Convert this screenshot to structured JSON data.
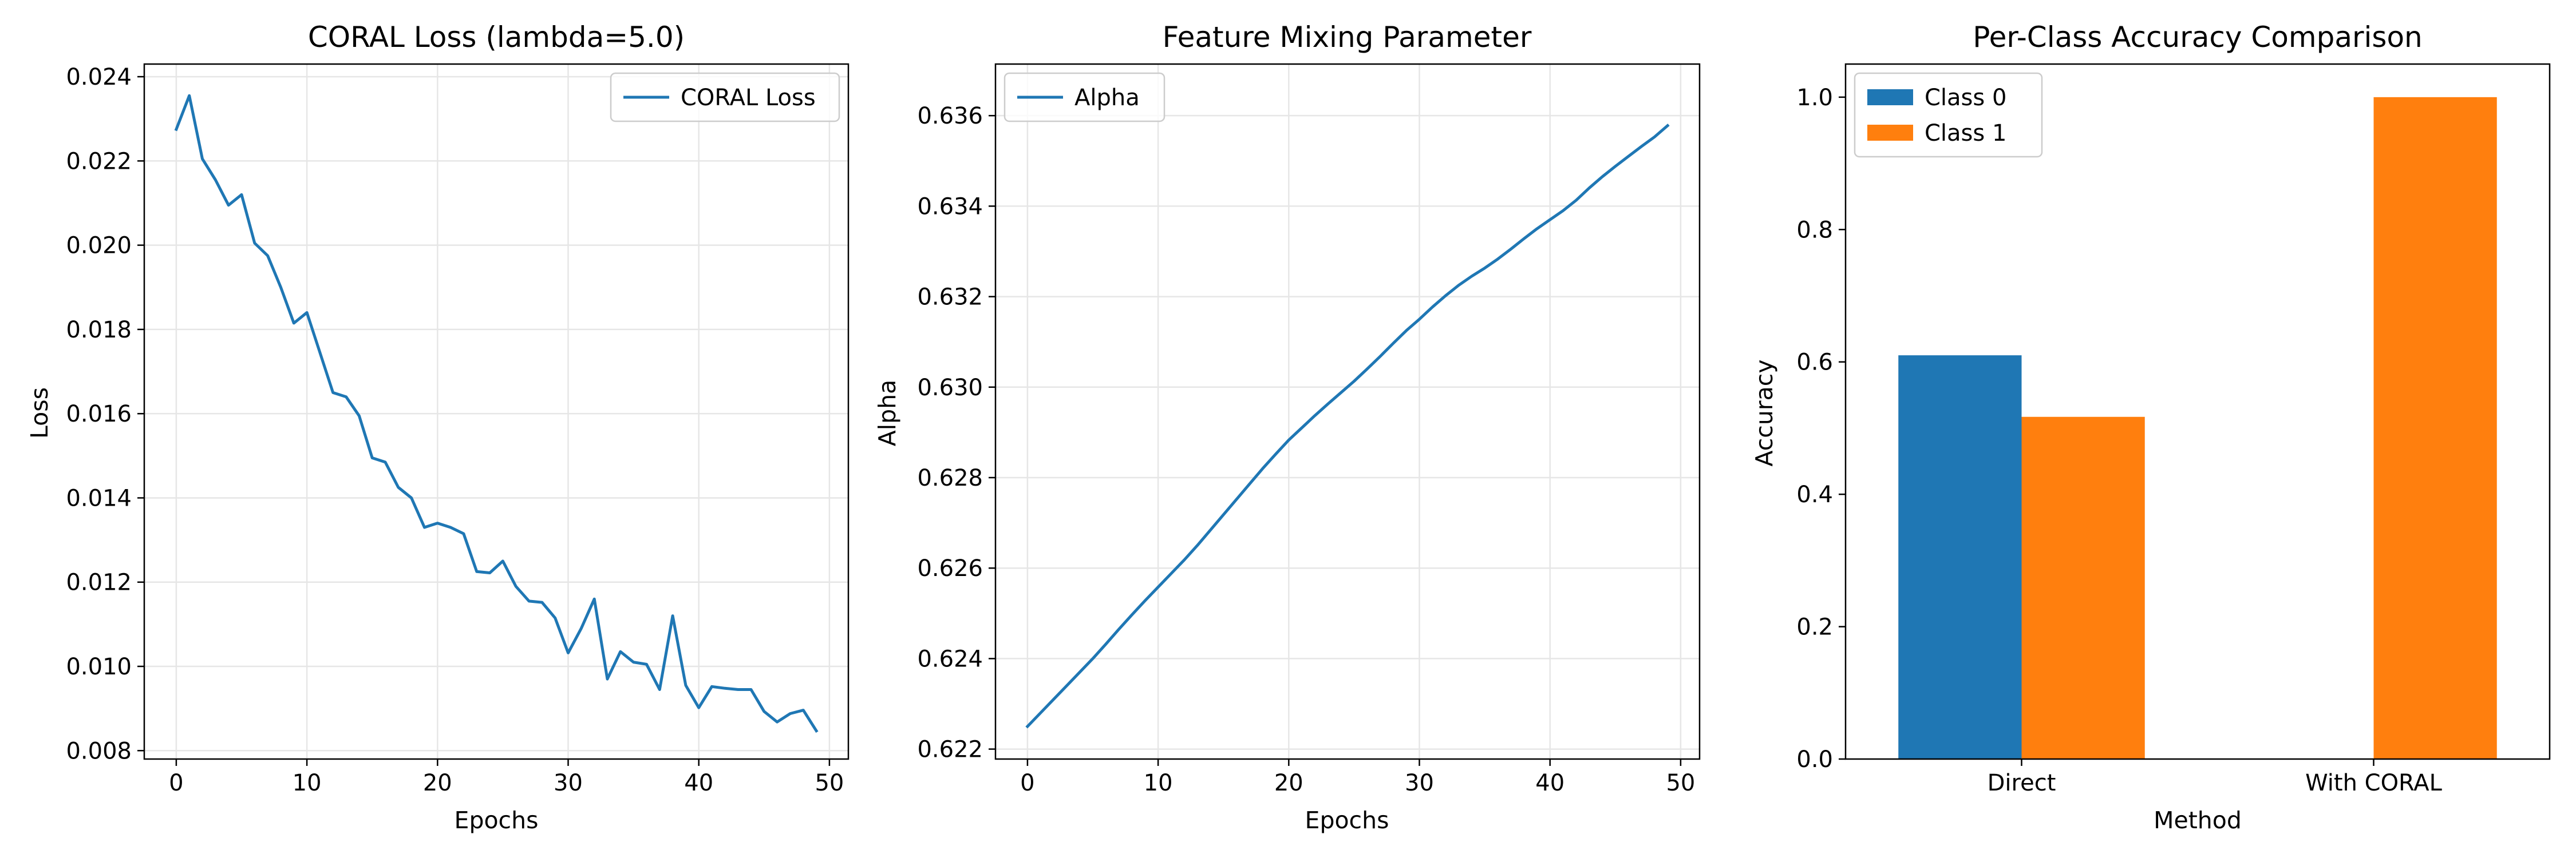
{
  "chart_data": [
    {
      "type": "line",
      "title": "CORAL Loss (lambda=5.0)",
      "xlabel": "Epochs",
      "ylabel": "Loss",
      "xlim": [
        -2.45,
        51.45
      ],
      "ylim": [
        0.0078,
        0.0243
      ],
      "xticks": [
        0,
        10,
        20,
        30,
        40,
        50
      ],
      "yticks": [
        0.008,
        0.01,
        0.012,
        0.014,
        0.016,
        0.018,
        0.02,
        0.022,
        0.024
      ],
      "ytick_format": 3,
      "grid": true,
      "legend_position": "top-right",
      "series": [
        {
          "name": "CORAL Loss",
          "color": "#1f77b4",
          "x": [
            0,
            1,
            2,
            3,
            4,
            5,
            6,
            7,
            8,
            9,
            10,
            11,
            12,
            13,
            14,
            15,
            16,
            17,
            18,
            19,
            20,
            21,
            22,
            23,
            24,
            25,
            26,
            27,
            28,
            29,
            30,
            31,
            32,
            33,
            34,
            35,
            36,
            37,
            38,
            39,
            40,
            41,
            42,
            43,
            44,
            45,
            46,
            47,
            48,
            49
          ],
          "y": [
            0.02275,
            0.02355,
            0.02205,
            0.02155,
            0.02095,
            0.0212,
            0.02005,
            0.01975,
            0.019,
            0.01815,
            0.0184,
            0.01745,
            0.0165,
            0.0164,
            0.01595,
            0.01495,
            0.01485,
            0.01425,
            0.014,
            0.0133,
            0.0134,
            0.0133,
            0.01315,
            0.01225,
            0.01222,
            0.0125,
            0.0119,
            0.01155,
            0.01152,
            0.01115,
            0.01032,
            0.0109,
            0.0116,
            0.0097,
            0.01035,
            0.0101,
            0.01005,
            0.00945,
            0.0112,
            0.00955,
            0.00902,
            0.00952,
            0.00948,
            0.00945,
            0.00945,
            0.00893,
            0.00868,
            0.00888,
            0.00896,
            0.00847
          ]
        }
      ]
    },
    {
      "type": "line",
      "title": "Feature Mixing Parameter",
      "xlabel": "Epochs",
      "ylabel": "Alpha",
      "xlim": [
        -2.45,
        51.45
      ],
      "ylim": [
        0.62178,
        0.63714
      ],
      "xticks": [
        0,
        10,
        20,
        30,
        40,
        50
      ],
      "yticks": [
        0.622,
        0.624,
        0.626,
        0.628,
        0.63,
        0.632,
        0.634,
        0.636
      ],
      "ytick_format": 3,
      "grid": true,
      "legend_position": "top-left",
      "series": [
        {
          "name": "Alpha",
          "color": "#1f77b4",
          "x": [
            0,
            1,
            2,
            3,
            4,
            5,
            6,
            7,
            8,
            9,
            10,
            11,
            12,
            13,
            14,
            15,
            16,
            17,
            18,
            19,
            20,
            21,
            22,
            23,
            24,
            25,
            26,
            27,
            28,
            29,
            30,
            31,
            32,
            33,
            34,
            35,
            36,
            37,
            38,
            39,
            40,
            41,
            42,
            43,
            44,
            45,
            46,
            47,
            48,
            49
          ],
          "y": [
            0.6225,
            0.6228,
            0.6231,
            0.6234,
            0.6237,
            0.624,
            0.62432,
            0.62465,
            0.62497,
            0.62528,
            0.62558,
            0.62588,
            0.62618,
            0.6265,
            0.62684,
            0.62718,
            0.62752,
            0.62786,
            0.6282,
            0.62852,
            0.62883,
            0.6291,
            0.62937,
            0.62963,
            0.62988,
            0.63013,
            0.6304,
            0.63068,
            0.63097,
            0.63125,
            0.6315,
            0.63177,
            0.63202,
            0.63225,
            0.63245,
            0.63263,
            0.63283,
            0.63305,
            0.63328,
            0.6335,
            0.6337,
            0.6339,
            0.63413,
            0.6344,
            0.63465,
            0.63488,
            0.6351,
            0.63532,
            0.63553,
            0.63578
          ]
        }
      ]
    },
    {
      "type": "bar",
      "title": "Per-Class Accuracy Comparison",
      "xlabel": "Method",
      "ylabel": "Accuracy",
      "categories": [
        "Direct",
        "With CORAL"
      ],
      "ylim": [
        0,
        1.05
      ],
      "yticks": [
        0.0,
        0.2,
        0.4,
        0.6,
        0.8,
        1.0
      ],
      "ytick_format": 1,
      "grid": false,
      "legend_position": "top-left",
      "series": [
        {
          "name": "Class 0",
          "color": "#1f77b4",
          "values": [
            0.61,
            0.0
          ]
        },
        {
          "name": "Class 1",
          "color": "#ff7f0e",
          "values": [
            0.517,
            1.0
          ]
        }
      ]
    }
  ]
}
